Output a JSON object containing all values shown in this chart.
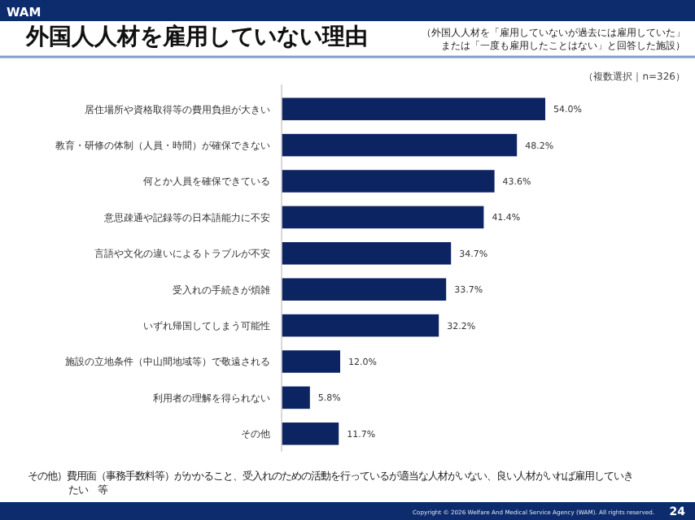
{
  "chart_data": {
    "type": "bar",
    "orientation": "horizontal",
    "title": "外国人人材を雇用していない理由",
    "subtitle": "（外国人人材を「雇用していないが過去には雇用していた」または「一度も雇用したことはない」と回答した施設）",
    "categories": [
      "居住場所や資格取得等の費用負担が大きい",
      "教育・研修の体制（人員・時間）が確保できない",
      "何とか人員を確保できている",
      "意思疎通や記録等の日本語能力に不安",
      "言語や文化の違いによるトラブルが不安",
      "受入れの手続きが煩雑",
      "いずれ帰国してしまう可能性",
      "施設の立地条件（中山間地域等）で敬遠される",
      "利用者の理解を得られない",
      "その他"
    ],
    "values": [
      54.0,
      48.2,
      43.6,
      41.4,
      34.7,
      33.7,
      32.2,
      12.0,
      5.8,
      11.7
    ],
    "value_labels": [
      "54.0%",
      "48.2%",
      "43.6%",
      "41.4%",
      "34.7%",
      "33.7%",
      "32.2%",
      "12.0%",
      "5.8%",
      "11.7%"
    ],
    "color": "#0d2462",
    "annotations": [
      "WAM",
      "（複数選択｜n=326）",
      "その他）費用面（事務手数料等）がかかること、受入れのための活動を行っているが適当な人材がいない、良い人材がいれば雇用していきたい　等",
      "Copyright © 2026 Welfare And Medical Service Agency (WAM). All rights reserved.",
      "24"
    ]
  }
}
